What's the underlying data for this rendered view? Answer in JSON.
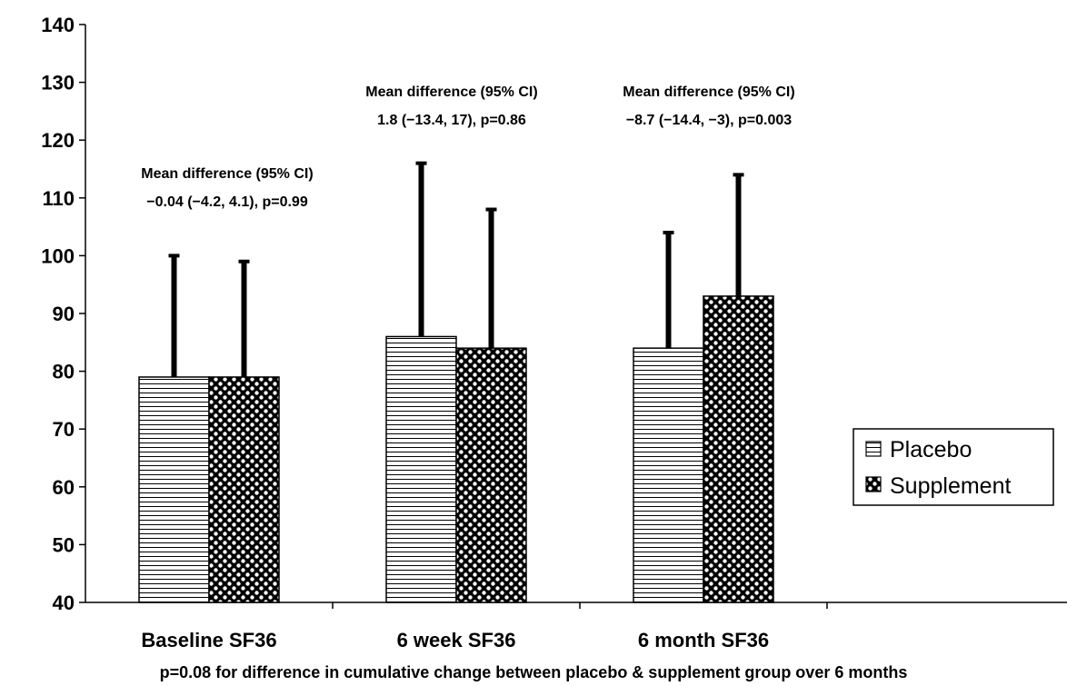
{
  "chart_data": {
    "type": "bar",
    "categories": [
      "Baseline SF36",
      "6 week SF36",
      "6 month SF36"
    ],
    "series": [
      {
        "name": "Placebo",
        "values": [
          79,
          86,
          84
        ],
        "error_upper": [
          100,
          116,
          104
        ],
        "pattern": "horizontal-lines"
      },
      {
        "name": "Supplement",
        "values": [
          79,
          84,
          93
        ],
        "error_upper": [
          99,
          108,
          114
        ],
        "pattern": "dots"
      }
    ],
    "ylim": [
      40,
      140
    ],
    "yticks": [
      "140",
      "130",
      "120",
      "110",
      "100",
      "90",
      "80",
      "70",
      "60",
      "50",
      "40"
    ],
    "annotations": [
      {
        "line1": "Mean difference (95% CI)",
        "line2": "−0.04 (−4.2, 4.1), p=0.99"
      },
      {
        "line1": "Mean difference (95% CI)",
        "line2": "1.8 (−13.4, 17), p=0.86"
      },
      {
        "line1": "Mean difference (95% CI)",
        "line2": "−8.7 (−14.4, −3), p=0.003"
      }
    ],
    "footnote": "p=0.08 for difference in cumulative change between placebo & supplement group over 6 months",
    "legend_position": "right",
    "grid": false
  }
}
